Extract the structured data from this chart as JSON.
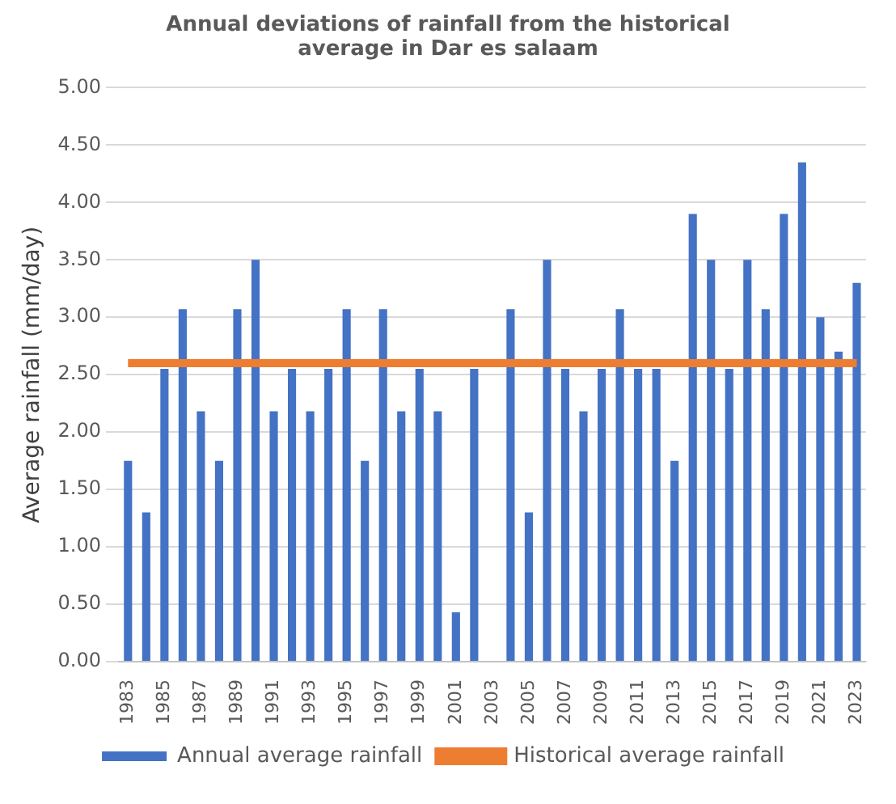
{
  "chart_data": {
    "type": "bar",
    "title": "Annual deviations of rainfall from the historical average in Dar es salaam",
    "ylabel": "Average rainfall (mm/day)",
    "categories": [
      "1983",
      null,
      "1985",
      null,
      "1987",
      null,
      "1989",
      null,
      "1991",
      null,
      "1993",
      null,
      "1995",
      null,
      "1997",
      null,
      "1999",
      null,
      "2001",
      null,
      "2003",
      null,
      "2005",
      null,
      "2007",
      null,
      "2009",
      null,
      "2011",
      null,
      "2013",
      null,
      "2015",
      null,
      "2017",
      null,
      "2019",
      null,
      "2021",
      null,
      "2023"
    ],
    "series": [
      {
        "name": "Annual average rainfall",
        "color": "#4472c4",
        "values": [
          1.75,
          1.3,
          2.55,
          3.07,
          2.18,
          1.75,
          3.07,
          3.5,
          2.18,
          2.55,
          2.18,
          2.55,
          3.07,
          1.75,
          3.07,
          2.18,
          2.55,
          2.18,
          0.43,
          2.55,
          null,
          3.07,
          1.3,
          3.5,
          2.55,
          2.18,
          2.55,
          3.07,
          2.55,
          2.55,
          1.75,
          3.9,
          3.5,
          2.55,
          3.5,
          3.07,
          3.9,
          4.35,
          3.0,
          2.7,
          3.3
        ]
      },
      {
        "name": "Historical average rainfall",
        "type": "line",
        "color": "#ed7d31",
        "marker": "none",
        "values": [
          2.6,
          2.6,
          2.6,
          2.6,
          2.6,
          2.6,
          2.6,
          2.6,
          2.6,
          2.6,
          2.6,
          2.6,
          2.6,
          2.6,
          2.6,
          2.6,
          2.6,
          2.6,
          2.6,
          2.6,
          2.6,
          2.6,
          2.6,
          2.6,
          2.6,
          2.6,
          2.6,
          2.6,
          2.6,
          2.6,
          2.6,
          2.6,
          2.6,
          2.6,
          2.6,
          2.6,
          2.6,
          2.6,
          2.6,
          2.6,
          2.6
        ]
      }
    ],
    "ylim": [
      0,
      5
    ],
    "yticks": [
      {
        "value": 0,
        "label": "0.00"
      },
      {
        "value": 0.5,
        "label": "0.50"
      },
      {
        "value": 1,
        "label": "1.00"
      },
      {
        "value": 1.5,
        "label": "1.50"
      },
      {
        "value": 2,
        "label": "2.00"
      },
      {
        "value": 2.5,
        "label": "2.50"
      },
      {
        "value": 3,
        "label": "3.00"
      },
      {
        "value": 3.5,
        "label": "3.50"
      },
      {
        "value": 4,
        "label": "4.00"
      },
      {
        "value": 4.5,
        "label": "4.50"
      },
      {
        "value": 5,
        "label": "5.00"
      }
    ],
    "grid": "y",
    "legend": "bottom"
  }
}
